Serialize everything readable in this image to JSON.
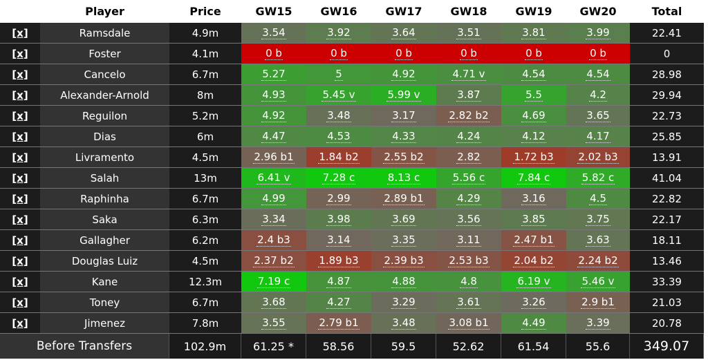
{
  "table": {
    "headers": [
      "Player",
      "Price",
      "GW15",
      "GW16",
      "GW17",
      "GW18",
      "GW19",
      "GW20",
      "Total"
    ],
    "remove_label": "[x]",
    "rows": [
      {
        "player": "Ramsdale",
        "price": "4.9m",
        "gw": [
          "3.54",
          "3.92",
          "3.64",
          "3.51",
          "3.81",
          "3.99"
        ],
        "total": "22.41"
      },
      {
        "player": "Foster",
        "price": "4.1m",
        "gw": [
          "0 b",
          "0 b",
          "0 b",
          "0 b",
          "0 b",
          "0 b"
        ],
        "total": "0"
      },
      {
        "player": "Cancelo",
        "price": "6.7m",
        "gw": [
          "5.27",
          "5",
          "4.92",
          "4.71 v",
          "4.54",
          "4.54"
        ],
        "total": "28.98"
      },
      {
        "player": "Alexander-Arnold",
        "price": "8m",
        "gw": [
          "4.93",
          "5.45 v",
          "5.99 v",
          "3.87",
          "5.5",
          "4.2"
        ],
        "total": "29.94"
      },
      {
        "player": "Reguilon",
        "price": "5.2m",
        "gw": [
          "4.92",
          "3.48",
          "3.17",
          "2.82 b2",
          "4.69",
          "3.65"
        ],
        "total": "22.73"
      },
      {
        "player": "Dias",
        "price": "6m",
        "gw": [
          "4.47",
          "4.53",
          "4.33",
          "4.24",
          "4.12",
          "4.17"
        ],
        "total": "25.85"
      },
      {
        "player": "Livramento",
        "price": "4.5m",
        "gw": [
          "2.96 b1",
          "1.84 b2",
          "2.55 b2",
          "2.82",
          "1.72 b3",
          "2.02 b3"
        ],
        "total": "13.91"
      },
      {
        "player": "Salah",
        "price": "13m",
        "gw": [
          "6.41 v",
          "7.28 c",
          "8.13 c",
          "5.56 c",
          "7.84 c",
          "5.82 c"
        ],
        "total": "41.04"
      },
      {
        "player": "Raphinha",
        "price": "6.7m",
        "gw": [
          "4.99",
          "2.99",
          "2.89 b1",
          "4.29",
          "3.16",
          "4.5"
        ],
        "total": "22.82"
      },
      {
        "player": "Saka",
        "price": "6.3m",
        "gw": [
          "3.34",
          "3.98",
          "3.69",
          "3.56",
          "3.85",
          "3.75"
        ],
        "total": "22.17"
      },
      {
        "player": "Gallagher",
        "price": "6.2m",
        "gw": [
          "2.4 b3",
          "3.14",
          "3.35",
          "3.11",
          "2.47 b1",
          "3.63"
        ],
        "total": "18.11"
      },
      {
        "player": "Douglas Luiz",
        "price": "4.5m",
        "gw": [
          "2.37 b2",
          "1.89 b3",
          "2.39 b3",
          "2.53 b3",
          "2.04 b2",
          "2.24 b2"
        ],
        "total": "13.46"
      },
      {
        "player": "Kane",
        "price": "12.3m",
        "gw": [
          "7.19 c",
          "4.87",
          "4.88",
          "4.8",
          "6.19 v",
          "5.46 v"
        ],
        "total": "33.39"
      },
      {
        "player": "Toney",
        "price": "6.7m",
        "gw": [
          "3.68",
          "4.27",
          "3.29",
          "3.61",
          "3.26",
          "2.9 b1"
        ],
        "total": "21.03"
      },
      {
        "player": "Jimenez",
        "price": "7.8m",
        "gw": [
          "3.55",
          "2.79 b1",
          "3.48",
          "3.08 b1",
          "4.49",
          "3.39"
        ],
        "total": "20.78"
      }
    ],
    "footer": {
      "label": "Before Transfers",
      "price": "102.9m",
      "gw": [
        "61.25 *",
        "58.56",
        "59.5",
        "52.62",
        "61.54",
        "55.6"
      ],
      "total": "349.07"
    }
  },
  "colors": {
    "zero_red": "#cc0000",
    "neutral": "#6e6a5e",
    "strong_green": "#12c80f",
    "low_red": "#a03a28",
    "dark_bg": "#1c1c1c",
    "player_bg": "#333333"
  }
}
